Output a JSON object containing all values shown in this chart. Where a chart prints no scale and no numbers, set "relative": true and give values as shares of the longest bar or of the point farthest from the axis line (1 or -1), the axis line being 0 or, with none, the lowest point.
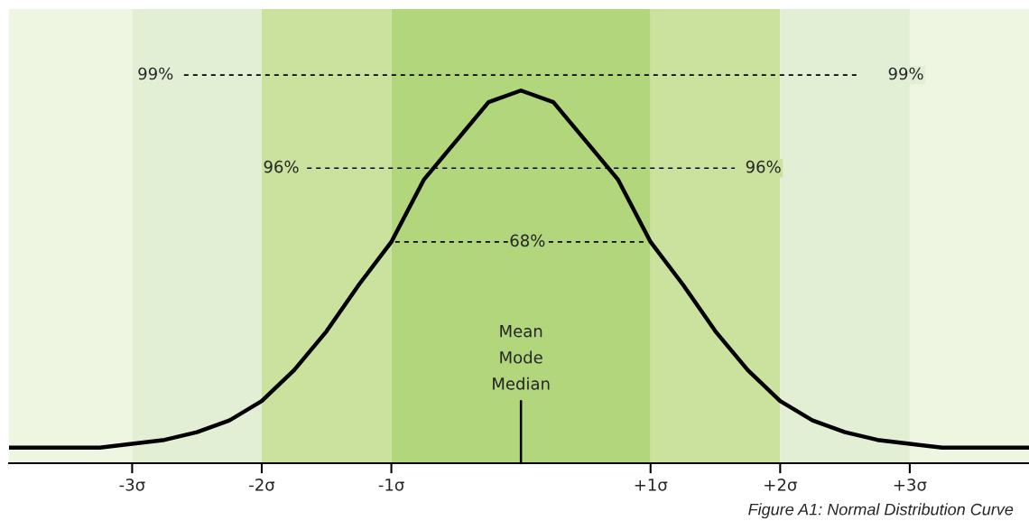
{
  "chart_data": {
    "type": "line",
    "relative": true,
    "xlim": [
      -3.95,
      3.92
    ],
    "xticks": [
      {
        "value": -3,
        "label": "-3σ"
      },
      {
        "value": -2,
        "label": "-2σ"
      },
      {
        "value": -1,
        "label": "-1σ"
      },
      {
        "value": 1,
        "label": "+1σ"
      },
      {
        "value": 2,
        "label": "+2σ"
      },
      {
        "value": 3,
        "label": "+3σ"
      }
    ],
    "tick_labels": "x",
    "grid": false,
    "legend": false,
    "bands": [
      {
        "axis": "x",
        "from": -3.95,
        "to": -3,
        "color": "#eef5e0"
      },
      {
        "axis": "x",
        "from": -3,
        "to": -2,
        "color": "#e2efd5"
      },
      {
        "axis": "x",
        "from": -2,
        "to": -1,
        "color": "#cbe29e"
      },
      {
        "axis": "x",
        "from": -1,
        "to": 1,
        "color": "#b1d67c"
      },
      {
        "axis": "x",
        "from": 1,
        "to": 2,
        "color": "#cbe29e"
      },
      {
        "axis": "x",
        "from": 2,
        "to": 3,
        "color": "#e2efd5"
      },
      {
        "axis": "x",
        "from": 3,
        "to": 3.92,
        "color": "#eef5e0"
      }
    ],
    "series": [
      {
        "color": "#000000",
        "x": [
          -3.95,
          -3.75,
          -3.5,
          -3.25,
          -3,
          -2.75,
          -2.5,
          -2.25,
          -2,
          -1.75,
          -1.5,
          -1.25,
          -1,
          -0.75,
          -0.5,
          -0.25,
          0,
          0.25,
          0.5,
          0.75,
          1,
          1.25,
          1.5,
          1.75,
          2,
          2.25,
          2.5,
          2.75,
          3,
          3.25,
          3.5,
          3.75,
          3.92
        ],
        "values": [
          0.04,
          0.04,
          0.04,
          0.04,
          0.05,
          0.06,
          0.08,
          0.11,
          0.16,
          0.24,
          0.34,
          0.46,
          0.57,
          0.73,
          0.83,
          0.93,
          0.96,
          0.93,
          0.83,
          0.73,
          0.57,
          0.46,
          0.34,
          0.24,
          0.16,
          0.11,
          0.08,
          0.06,
          0.05,
          0.04,
          0.04,
          0.04,
          0.04
        ]
      },
      {
        "line_style": "dashed",
        "color": "#000000",
        "x": [
          -2.6,
          2.62
        ],
        "values": [
          1,
          1
        ]
      },
      {
        "line_style": "dashed",
        "color": "#000000",
        "x": [
          -1.65,
          1.65
        ],
        "values": [
          0.76,
          0.76
        ]
      },
      {
        "line_style": "dashed",
        "color": "#000000",
        "x": [
          -0.97,
          0.97
        ],
        "values": [
          0.57,
          0.57
        ]
      }
    ],
    "annotations": [
      {
        "text": "99%",
        "x": -2.82,
        "y": 1
      },
      {
        "text": "99%",
        "x": 2.97,
        "y": 1
      },
      {
        "text": "96%",
        "x": -1.85,
        "y": 0.76
      },
      {
        "text": "96%",
        "x": 1.87,
        "y": 0.76
      },
      {
        "text": "68%",
        "x": 0.05,
        "y": 0.57
      },
      {
        "text": "Mean\nMode\nMedian",
        "x": 0,
        "y": 0
      },
      "Figure A1: Normal Distribution Curve"
    ]
  }
}
